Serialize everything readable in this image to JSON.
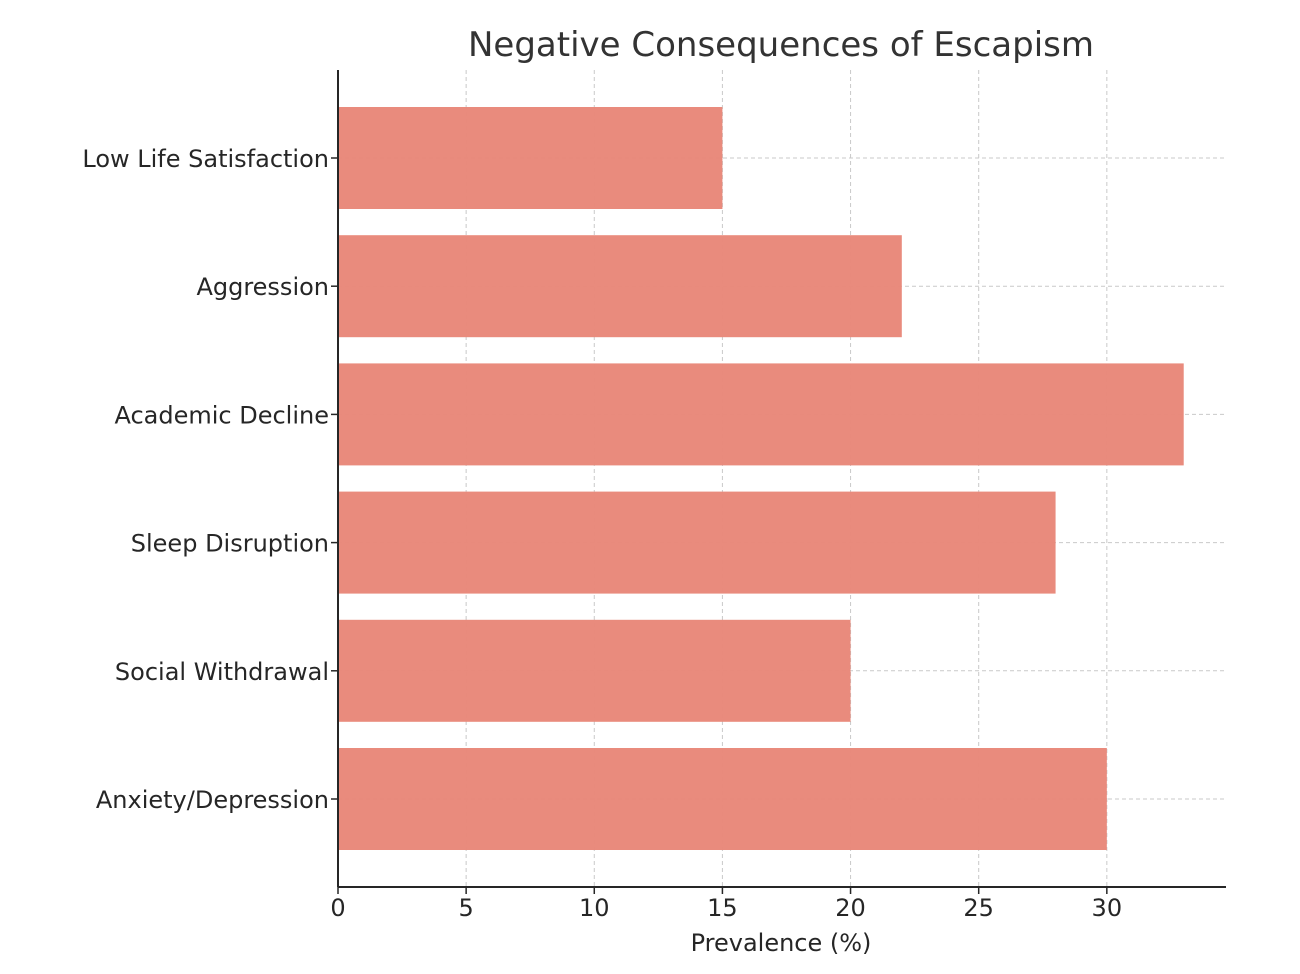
{
  "chart_data": {
    "type": "bar",
    "orientation": "horizontal",
    "title": "Negative Consequences of Escapism",
    "xlabel": "Prevalence (%)",
    "ylabel": "",
    "categories": [
      "Anxiety/Depression",
      "Social Withdrawal",
      "Sleep Disruption",
      "Academic Decline",
      "Aggression",
      "Low Life Satisfaction"
    ],
    "values": [
      30,
      20,
      28,
      33,
      22,
      15
    ],
    "xlim": [
      0,
      34.65
    ],
    "xticks": [
      0,
      5,
      10,
      15,
      20,
      25,
      30
    ],
    "grid": true,
    "bar_color": "#e9897a"
  }
}
